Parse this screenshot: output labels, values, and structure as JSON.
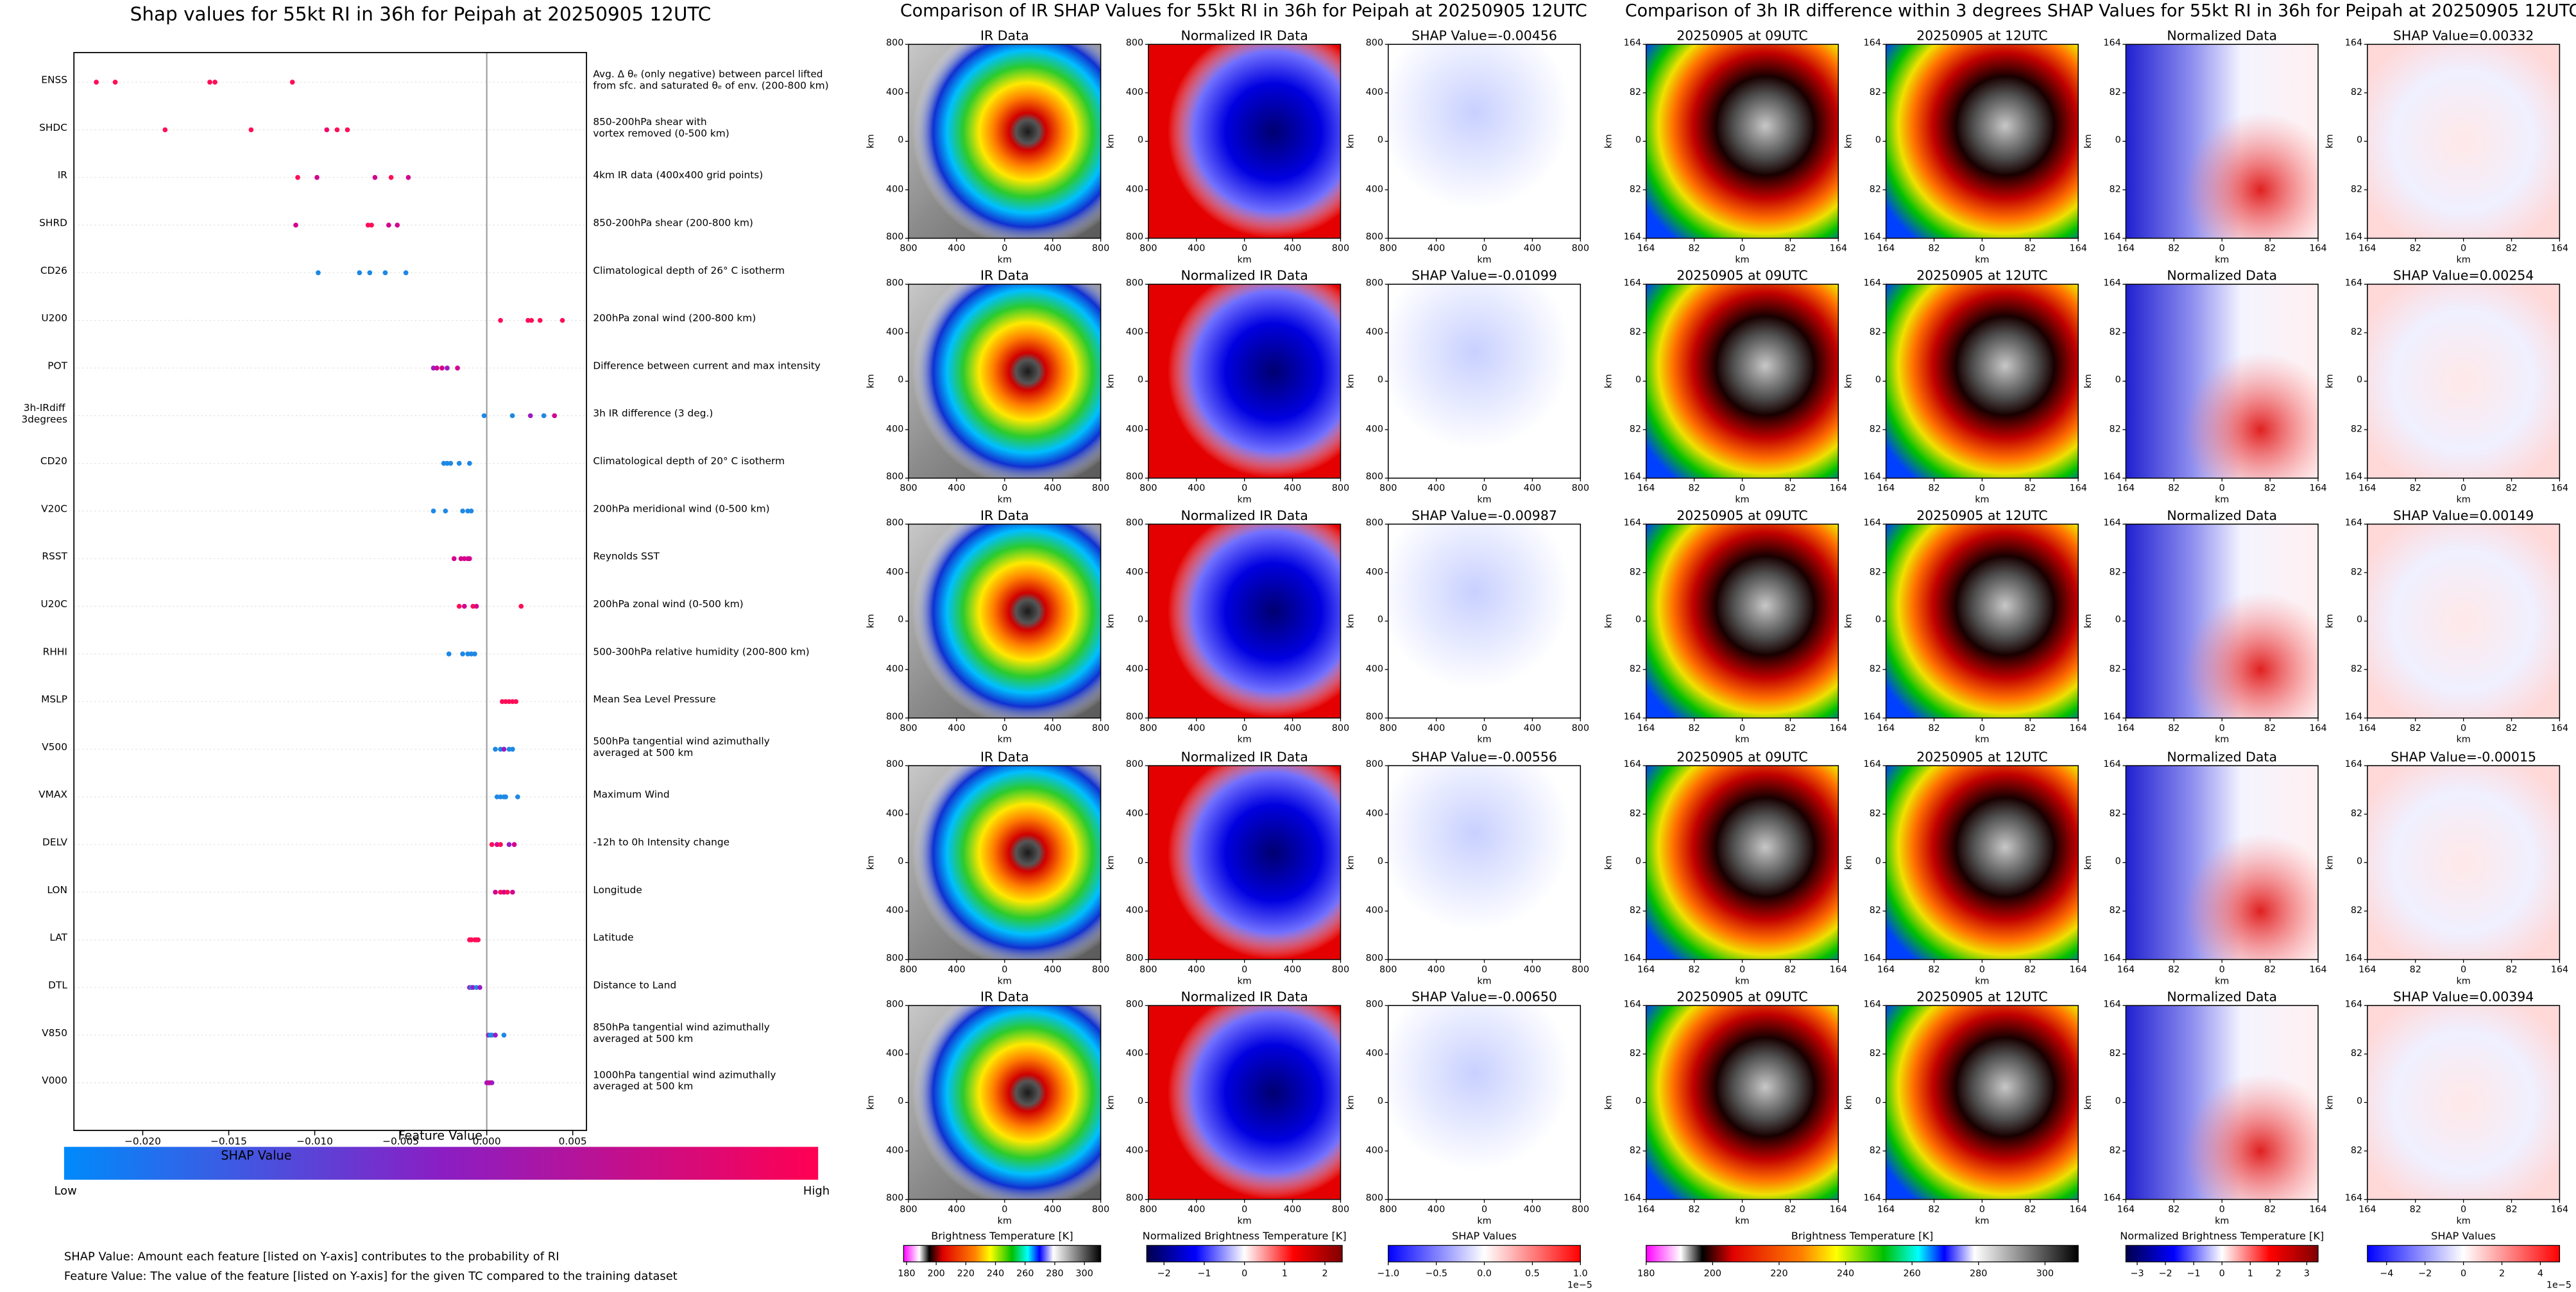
{
  "chart_data": [
    {
      "type": "scatter",
      "title": "Shap values for 55kt RI in 36h for Peipah at 20250905 12UTC",
      "x_label": "SHAP Value",
      "categories": [
        "ENSS",
        "SHDC",
        "IR",
        "SHRD",
        "CD26",
        "U200",
        "POT",
        "3h-IRdiff\n3degrees",
        "CD20",
        "V20C",
        "RSST",
        "U20C",
        "RHHI",
        "MSLP",
        "V500",
        "VMAX",
        "DELV",
        "LON",
        "LAT",
        "DTL",
        "V850",
        "V000"
      ],
      "descriptions": [
        "Avg. Δ θₑ (only negative) between parcel lifted\nfrom sfc. and saturated θₑ of env. (200-800 km)",
        "850-200hPa shear with\nvortex removed (0-500 km)",
        "4km IR data (400x400 grid points)",
        "850-200hPa shear (200-800 km)",
        "Climatological depth of 26° C isotherm",
        "200hPa zonal wind (200-800 km)",
        "Difference between current and max intensity",
        "3h IR difference (3 deg.)",
        "Climatological depth of 20° C isotherm",
        "200hPa meridional wind (0-500 km)",
        "Reynolds SST",
        "200hPa zonal wind (0-500 km)",
        "500-300hPa relative humidity (200-800 km)",
        "Mean Sea Level Pressure",
        "500hPa tangential wind azimuthally\naveraged at 500 km",
        "Maximum Wind",
        "-12h to 0h Intensity change",
        "Longitude",
        "Latitude",
        "Distance to Land",
        "850hPa tangential wind azimuthally\naveraged at 500 km",
        "1000hPa tangential wind azimuthally\naveraged at 500 km"
      ],
      "values": [
        [
          -0.0227,
          -0.0216,
          -0.0161,
          -0.0158,
          -0.0113
        ],
        [
          -0.0187,
          -0.0137,
          -0.0093,
          -0.0087,
          -0.0081
        ],
        [
          -0.00456,
          -0.01099,
          -0.00987,
          -0.00556,
          -0.0065
        ],
        [
          -0.0111,
          -0.0069,
          -0.0067,
          -0.0057,
          -0.0052
        ],
        [
          -0.0098,
          -0.0074,
          -0.0068,
          -0.0059,
          -0.0047
        ],
        [
          0.0008,
          0.0024,
          0.0026,
          0.0031,
          0.0044
        ],
        [
          -0.0031,
          -0.0029,
          -0.0026,
          -0.0023,
          -0.0017
        ],
        [
          0.00332,
          0.00254,
          0.00149,
          -0.00015,
          0.00394
        ],
        [
          -0.0025,
          -0.0023,
          -0.0021,
          -0.0016,
          -0.001
        ],
        [
          -0.0031,
          -0.0024,
          -0.0014,
          -0.0011,
          -0.0009
        ],
        [
          -0.0019,
          -0.0015,
          -0.0013,
          -0.0011,
          -0.001
        ],
        [
          -0.0016,
          -0.0013,
          -0.0008,
          -0.0006,
          0.002
        ],
        [
          -0.0022,
          -0.0014,
          -0.0011,
          -0.0009,
          -0.0007
        ],
        [
          0.0009,
          0.0011,
          0.0013,
          0.0015,
          0.0017
        ],
        [
          0.0005,
          0.0008,
          0.001,
          0.0013,
          0.0015
        ],
        [
          0.0006,
          0.0008,
          0.001,
          0.0011,
          0.0018
        ],
        [
          0.0003,
          0.0006,
          0.0008,
          0.0013,
          0.0016
        ],
        [
          0.0005,
          0.0008,
          0.001,
          0.0012,
          0.0015
        ],
        [
          -0.001,
          -0.0009,
          -0.0007,
          -0.0006,
          -0.0005
        ],
        [
          -0.001,
          -0.0009,
          -0.0008,
          -0.0006,
          -0.0004
        ],
        [
          0.0001,
          0.0002,
          0.0003,
          0.0005,
          0.001
        ],
        [
          0,
          0.0001,
          0.00015,
          0.0002,
          0.0003
        ]
      ],
      "colors": [
        [
          "#ff0d57",
          "#ff0d57",
          "#ff0d57",
          "#ff0d57",
          "#ff0d57"
        ],
        [
          "#ff0d57",
          "#ff0d57",
          "#f2056a",
          "#ff0d57",
          "#ff0d57"
        ],
        [
          "#d4008e",
          "#ff0d57",
          "#d4008e",
          "#ff0d57",
          "#d4008e"
        ],
        [
          "#d4008e",
          "#ff0d57",
          "#ff0d57",
          "#d4008e",
          "#d4008e"
        ],
        [
          "#1e88e5",
          "#1e88e5",
          "#1e88e5",
          "#1e88e5",
          "#1e88e5"
        ],
        [
          "#ff0d57",
          "#ff0d57",
          "#ff0d57",
          "#ff0d57",
          "#ff0d57"
        ],
        [
          "#9b1ac2",
          "#d4008e",
          "#d4008e",
          "#9b1ac2",
          "#d4008e"
        ],
        [
          "#1e88e5",
          "#9b1ac2",
          "#1e88e5",
          "#1e88e5",
          "#d4008e"
        ],
        [
          "#1e88e5",
          "#1e88e5",
          "#1e88e5",
          "#1e88e5",
          "#1e88e5"
        ],
        [
          "#1e88e5",
          "#1e88e5",
          "#1e88e5",
          "#1e88e5",
          "#1e88e5"
        ],
        [
          "#d4008e",
          "#d4008e",
          "#d4008e",
          "#d4008e",
          "#d4008e"
        ],
        [
          "#ff0d57",
          "#d4008e",
          "#ff0d57",
          "#d4008e",
          "#ff0d57"
        ],
        [
          "#1e88e5",
          "#1e88e5",
          "#1e88e5",
          "#1e88e5",
          "#1e88e5"
        ],
        [
          "#ff0d57",
          "#ff0d57",
          "#ff0d57",
          "#ff0d57",
          "#ff0d57"
        ],
        [
          "#1e88e5",
          "#1e88e5",
          "#9b1ac2",
          "#1e88e5",
          "#1e88e5"
        ],
        [
          "#1e88e5",
          "#1e88e5",
          "#1e88e5",
          "#1e88e5",
          "#1e88e5"
        ],
        [
          "#ff0d57",
          "#d4008e",
          "#ff0d57",
          "#9b1ac2",
          "#d4008e"
        ],
        [
          "#d4008e",
          "#ff0d57",
          "#d4008e",
          "#ff0d57",
          "#d4008e"
        ],
        [
          "#ff0d57",
          "#ff0d57",
          "#ff0d57",
          "#ff0d57",
          "#ff0d57"
        ],
        [
          "#9b1ac2",
          "#1e88e5",
          "#9b1ac2",
          "#1e88e5",
          "#9b1ac2"
        ],
        [
          "#9b1ac2",
          "#1e88e5",
          "#1e88e5",
          "#9b1ac2",
          "#1e88e5"
        ],
        [
          "#9b1ac2",
          "#d4008e",
          "#9b1ac2",
          "#d4008e",
          "#9b1ac2"
        ]
      ],
      "xlim": [
        -0.024,
        0.0058
      ],
      "xticks": [
        {
          "value": -0.02,
          "label": "−0.020"
        },
        {
          "value": -0.015,
          "label": "−0.015"
        },
        {
          "value": -0.01,
          "label": "−0.010"
        },
        {
          "value": -0.005,
          "label": "−0.005"
        },
        {
          "value": 0,
          "label": "0.000"
        },
        {
          "value": 0.005,
          "label": "0.005"
        }
      ],
      "colorbar_title": "Feature Value",
      "colorbar_low": "Low",
      "colorbar_high": "High",
      "notes": [
        "SHAP Value: Amount each feature [listed on Y-axis] contributes to the probability of RI",
        "Feature Value: The value of the feature [listed on Y-axis] for the given TC compared to the training dataset"
      ]
    }
  ],
  "ir_figure": {
    "title": "Comparison of IR SHAP Values for 55kt RI in 36h for Peipah at 20250905 12UTC",
    "panel_titles": [
      "IR Data",
      "Normalized IR Data"
    ],
    "shap_titles": [
      "SHAP Value=-0.00456",
      "SHAP Value=-0.01099",
      "SHAP Value=-0.00987",
      "SHAP Value=-0.00556",
      "SHAP Value=-0.00650"
    ],
    "axis_label": "km",
    "axis_lim": [
      -800,
      800
    ],
    "axis_ticks": [
      {
        "value": -800,
        "label": "800"
      },
      {
        "value": -400,
        "label": "400"
      },
      0,
      400,
      800
    ],
    "colorbars": [
      {
        "label": "Brightness Temperature [K]",
        "lim": [
          178,
          311
        ],
        "ticks": [
          180,
          200,
          220,
          240,
          260,
          280,
          300
        ]
      },
      {
        "label": "Normalized Brightness Temperature [K]",
        "lim": [
          -2.43,
          2.43
        ],
        "ticks": [
          {
            "value": -2,
            "label": "−2"
          },
          {
            "value": -1,
            "label": "−1"
          },
          0,
          1,
          2
        ]
      },
      {
        "label": "SHAP Values",
        "lim": [
          -1,
          1
        ],
        "offset": "1e−5",
        "ticks": [
          {
            "value": -1,
            "label": "−1.0"
          },
          {
            "value": -0.5,
            "label": "−0.5"
          },
          {
            "value": 0,
            "label": "0.0"
          },
          0.5,
          {
            "value": 1,
            "label": "1.0"
          }
        ]
      }
    ]
  },
  "diff_figure": {
    "title": "Comparison of 3h IR difference within 3 degrees SHAP Values for 55kt RI in 36h for Peipah at 20250905 12UTC",
    "panel_titles": [
      "20250905 at 09UTC",
      "20250905 at 12UTC",
      "Normalized Data"
    ],
    "shap_titles": [
      "SHAP Value=0.00332",
      "SHAP Value=0.00254",
      "SHAP Value=0.00149",
      "SHAP Value=-0.00015",
      "SHAP Value=0.00394"
    ],
    "axis_label": "km",
    "axis_lim": [
      -164,
      164
    ],
    "axis_ticks": [
      {
        "value": -164,
        "label": "164"
      },
      {
        "value": -82,
        "label": "82"
      },
      0,
      82,
      164
    ],
    "colorbars": [
      {
        "label": "Brightness Temperature [K]",
        "lim": [
          180,
          310
        ],
        "ticks": [
          180,
          200,
          220,
          240,
          260,
          280,
          300
        ]
      },
      {
        "label": "Normalized Brightness Temperature [K]",
        "lim": [
          -3.4,
          3.4
        ],
        "ticks": [
          {
            "value": -3,
            "label": "−3"
          },
          {
            "value": -2,
            "label": "−2"
          },
          {
            "value": -1,
            "label": "−1"
          },
          0,
          1,
          2,
          3
        ]
      },
      {
        "label": "SHAP Values",
        "lim": [
          -5,
          5
        ],
        "offset": "1e−5",
        "ticks": [
          {
            "value": -4,
            "label": "−4"
          },
          {
            "value": -2,
            "label": "−2"
          },
          0,
          2,
          4
        ]
      }
    ]
  }
}
